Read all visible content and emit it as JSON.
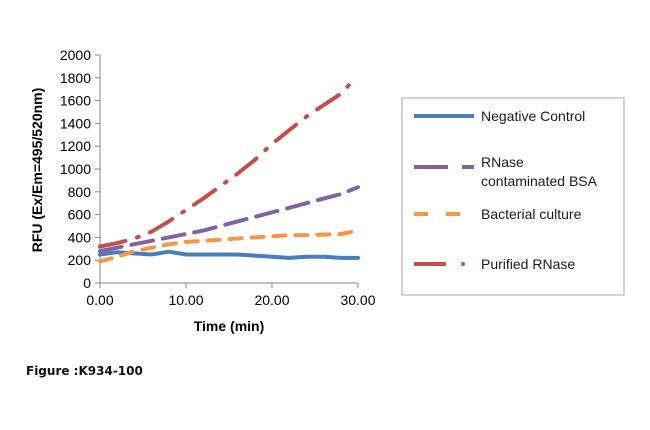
{
  "caption": "Figure :K934-100",
  "chart_data": {
    "type": "line",
    "title": "",
    "xlabel": "Time (min)",
    "ylabel": "RFU (Ex/Em=495/520nm)",
    "xlim": [
      0,
      30
    ],
    "ylim": [
      0,
      2000
    ],
    "xticks": [
      0,
      10,
      20,
      30
    ],
    "xtick_labels": [
      "0.00",
      "10.00",
      "20.00",
      "30.00"
    ],
    "yticks": [
      0,
      200,
      400,
      600,
      800,
      1000,
      1200,
      1400,
      1600,
      1800,
      2000
    ],
    "ytick_labels": [
      "0",
      "200",
      "400",
      "600",
      "800",
      "1000",
      "1200",
      "1400",
      "1600",
      "1800",
      "2000"
    ],
    "grid": false,
    "legend_position": "right",
    "series": [
      {
        "name": "Negative Control",
        "color": "#4a7ebb",
        "dash": "solid",
        "x": [
          0,
          2,
          4,
          6,
          8,
          10,
          12,
          14,
          16,
          18,
          20,
          22,
          24,
          26,
          28,
          30
        ],
        "y": [
          250,
          270,
          260,
          250,
          275,
          250,
          250,
          250,
          250,
          240,
          230,
          220,
          230,
          230,
          220,
          220
        ]
      },
      {
        "name": "RNase contaminated BSA",
        "color": "#8064a2",
        "dash": "longdash",
        "x": [
          0,
          2,
          4,
          6,
          8,
          10,
          12,
          14,
          16,
          18,
          20,
          22,
          24,
          26,
          28,
          30
        ],
        "y": [
          280,
          310,
          340,
          370,
          400,
          430,
          460,
          500,
          540,
          580,
          620,
          660,
          700,
          740,
          780,
          840
        ]
      },
      {
        "name": "Bacterial culture",
        "color": "#f79646",
        "dash": "dash",
        "x": [
          0,
          2,
          4,
          6,
          8,
          10,
          12,
          14,
          16,
          18,
          20,
          22,
          24,
          26,
          28,
          30
        ],
        "y": [
          190,
          230,
          280,
          310,
          340,
          360,
          370,
          380,
          390,
          400,
          410,
          420,
          420,
          425,
          430,
          460
        ]
      },
      {
        "name": "Purified RNase",
        "color": "#c0504d",
        "dash": "dashdot",
        "x": [
          0,
          2,
          4,
          6,
          8,
          10,
          12,
          14,
          16,
          18,
          20,
          22,
          24,
          26,
          28,
          29
        ],
        "y": [
          320,
          350,
          390,
          450,
          540,
          640,
          740,
          850,
          960,
          1080,
          1220,
          1340,
          1460,
          1560,
          1660,
          1740
        ]
      }
    ]
  }
}
